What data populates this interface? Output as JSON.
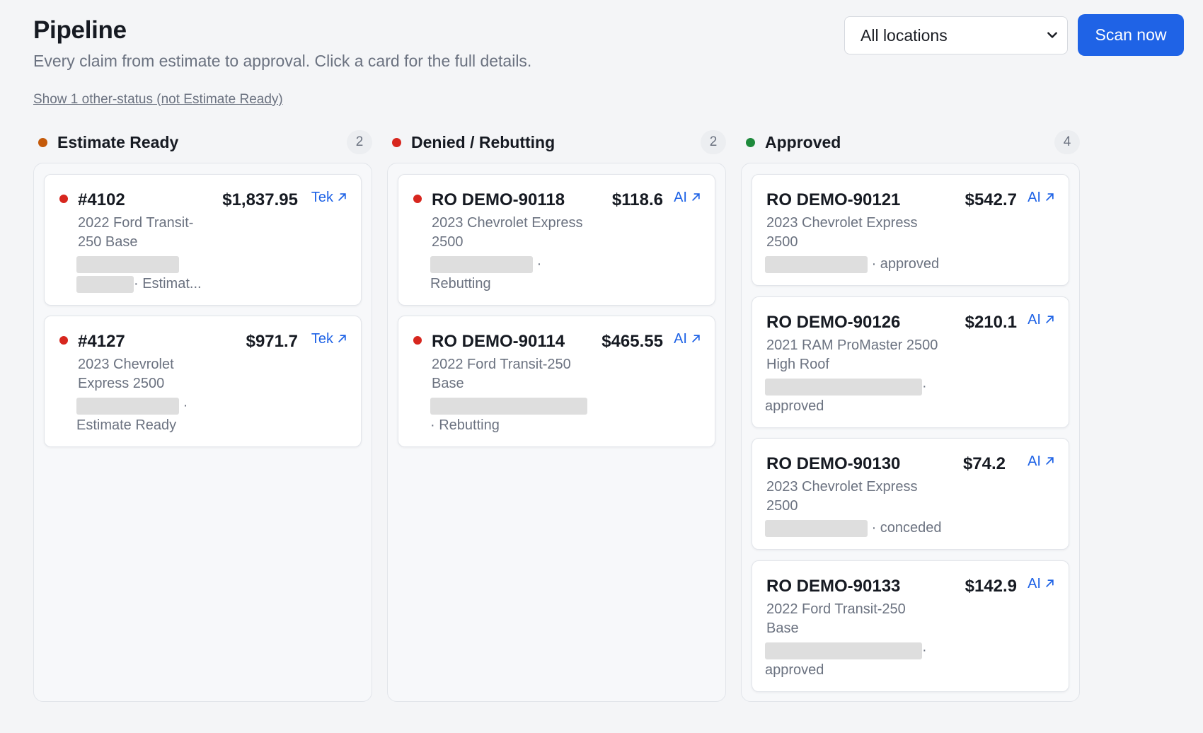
{
  "header": {
    "title": "Pipeline",
    "subtitle": "Every claim from estimate to approval. Click a card for the full details."
  },
  "toolbar": {
    "location_selected": "All locations",
    "scan_label": "Scan now"
  },
  "other_status_link": "Show 1 other-status (not Estimate Ready)",
  "colors": {
    "accent": "#1f63e6",
    "estimate_ready": "#c45a0a",
    "denied": "#d7261e",
    "approved": "#1e8a3c"
  },
  "columns": [
    {
      "title": "Estimate Ready",
      "count": "2",
      "cards": [
        {
          "ro": "#4102",
          "amount": "$1,837.95",
          "source": "Tek",
          "vehicle_line1": "2022 Ford Transit-",
          "vehicle_line2": "250 Base",
          "status": "· Estimat..."
        },
        {
          "ro": "#4127",
          "amount": "$971.7",
          "source": "Tek",
          "vehicle_line1": "2023 Chevrolet",
          "vehicle_line2": "Express 2500",
          "status_sep": "·",
          "status": "Estimate Ready"
        }
      ]
    },
    {
      "title": "Denied / Rebutting",
      "count": "2",
      "cards": [
        {
          "ro": "RO DEMO-90118",
          "amount": "$118.6",
          "source": "AI",
          "vehicle_line1": "2023 Chevrolet Express",
          "vehicle_line2": "2500",
          "status_sep": "·",
          "status": "Rebutting"
        },
        {
          "ro": "RO DEMO-90114",
          "amount": "$465.55",
          "source": "AI",
          "vehicle_line1": "2022 Ford Transit-250",
          "vehicle_line2": "Base",
          "status": "· Rebutting"
        }
      ]
    },
    {
      "title": "Approved",
      "count": "4",
      "cards": [
        {
          "ro": "RO DEMO-90121",
          "amount": "$542.7",
          "source": "AI",
          "vehicle_line1": "2023 Chevrolet Express",
          "vehicle_line2": "2500",
          "status": "· approved"
        },
        {
          "ro": "RO DEMO-90126",
          "amount": "$210.1",
          "source": "AI",
          "vehicle_line1": "2021 RAM ProMaster 2500",
          "vehicle_line2": "High Roof",
          "status_sep": "·",
          "status": "approved"
        },
        {
          "ro": "RO DEMO-90130",
          "amount": "$74.2",
          "source": "AI",
          "vehicle_line1": "2023 Chevrolet Express",
          "vehicle_line2": "2500",
          "status": "· conceded"
        },
        {
          "ro": "RO DEMO-90133",
          "amount": "$142.9",
          "source": "AI",
          "vehicle_line1": "2022 Ford Transit-250",
          "vehicle_line2": "Base",
          "status_sep": "·",
          "status": "approved"
        }
      ]
    }
  ]
}
